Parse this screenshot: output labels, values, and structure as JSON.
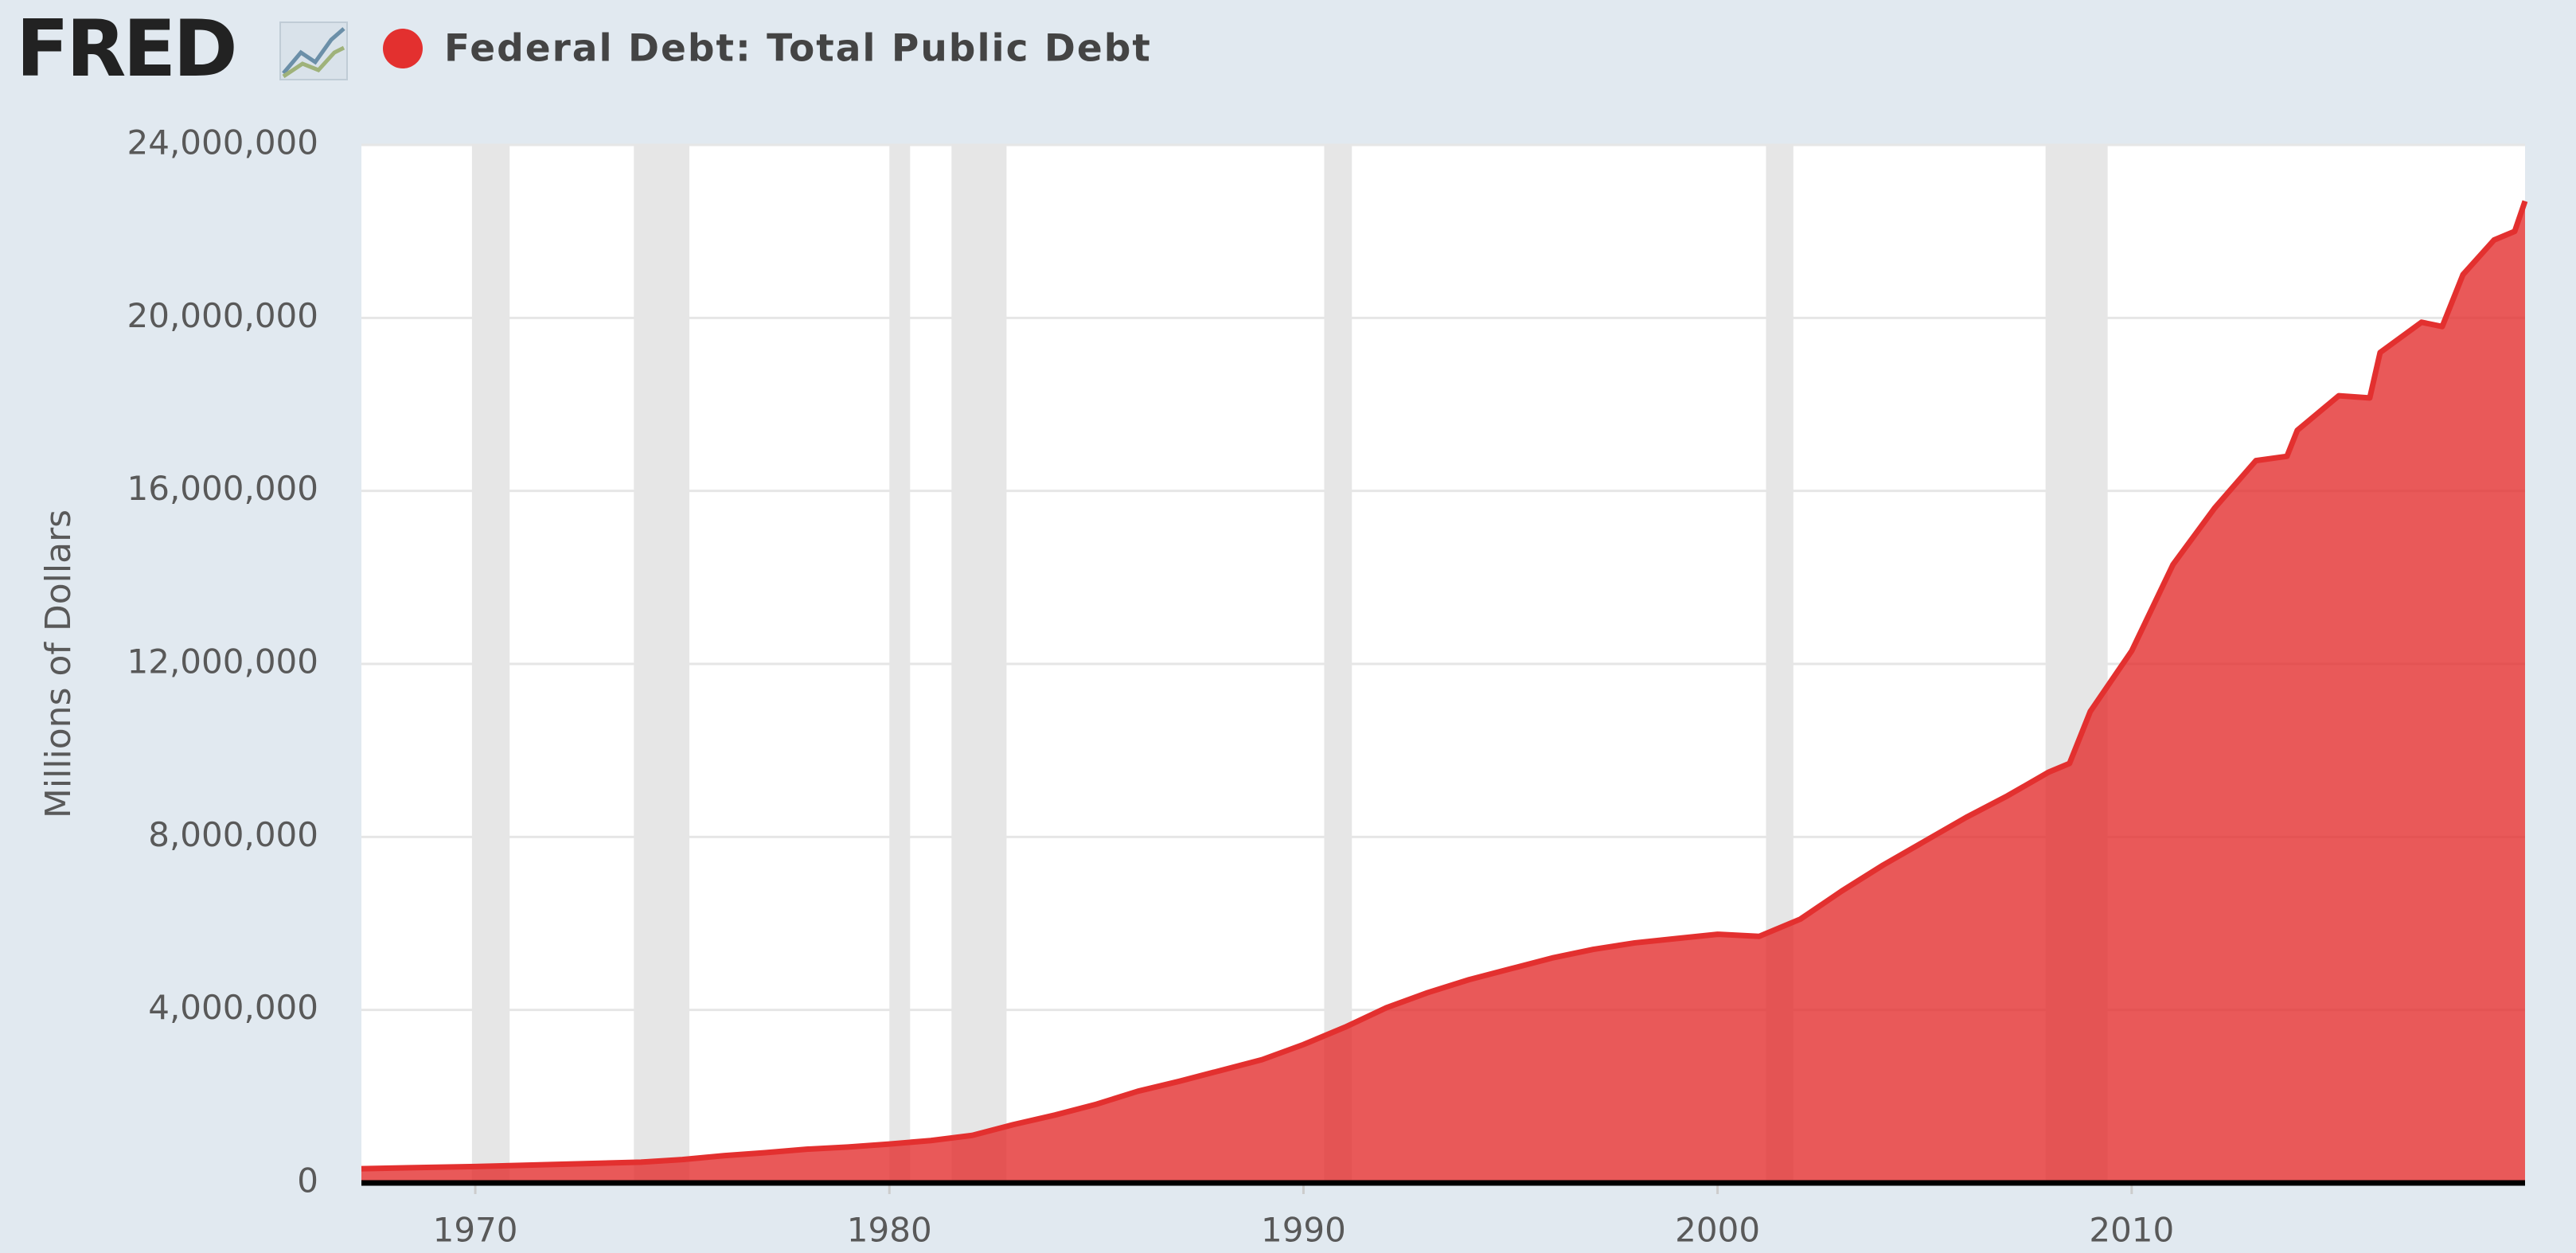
{
  "logo": "FRED",
  "chart_data": {
    "type": "area",
    "y_label": "Millions of Dollars",
    "x": [
      1967.25,
      1970,
      1972,
      1974,
      1975,
      1976,
      1977,
      1978,
      1979,
      1980,
      1981,
      1982,
      1983,
      1984,
      1985,
      1986,
      1987,
      1988,
      1989,
      1990,
      1991,
      1992,
      1993,
      1994,
      1995,
      1996,
      1997,
      1998,
      1999,
      2000,
      2001,
      2002,
      2003,
      2004,
      2005,
      2006,
      2007,
      2008,
      2008.5,
      2009,
      2010,
      2011,
      2012,
      2013,
      2013.75,
      2014,
      2015,
      2015.75,
      2016,
      2017,
      2017.5,
      2018,
      2018.75,
      2019.25,
      2019.5
    ],
    "series": [
      {
        "name": "Federal Debt: Total Public Debt",
        "color": "#e3302f",
        "values": [
          330000,
          380000,
          430000,
          480000,
          540000,
          630000,
          700000,
          780000,
          830000,
          900000,
          980000,
          1100000,
          1350000,
          1570000,
          1820000,
          2120000,
          2350000,
          2600000,
          2850000,
          3200000,
          3600000,
          4050000,
          4400000,
          4700000,
          4950000,
          5200000,
          5400000,
          5550000,
          5650000,
          5750000,
          5700000,
          6100000,
          6750000,
          7350000,
          7900000,
          8450000,
          8950000,
          9500000,
          9700000,
          10900000,
          12300000,
          14300000,
          15600000,
          16700000,
          16800000,
          17400000,
          18200000,
          18150000,
          19200000,
          19900000,
          19800000,
          21000000,
          21800000,
          22000000,
          22700000
        ]
      }
    ],
    "recessions": [
      [
        1969.92,
        1970.83
      ],
      [
        1973.83,
        1975.17
      ],
      [
        1980.0,
        1980.5
      ],
      [
        1981.5,
        1982.83
      ],
      [
        1990.5,
        1991.17
      ],
      [
        2001.17,
        2001.83
      ],
      [
        2007.92,
        2009.42
      ]
    ],
    "xlim": [
      1967.25,
      2019.5
    ],
    "ylim": [
      0,
      24000000
    ],
    "xticks": [
      1970,
      1980,
      1990,
      2000,
      2010
    ],
    "yticks": [
      0,
      {
        "value": 4000000,
        "label": "4,000,000"
      },
      {
        "value": 8000000,
        "label": "8,000,000"
      },
      {
        "value": 12000000,
        "label": "12,000,000"
      },
      {
        "value": 16000000,
        "label": "16,000,000"
      },
      {
        "value": 20000000,
        "label": "20,000,000"
      },
      {
        "value": 24000000,
        "label": "24,000,000"
      }
    ],
    "grid": true
  }
}
